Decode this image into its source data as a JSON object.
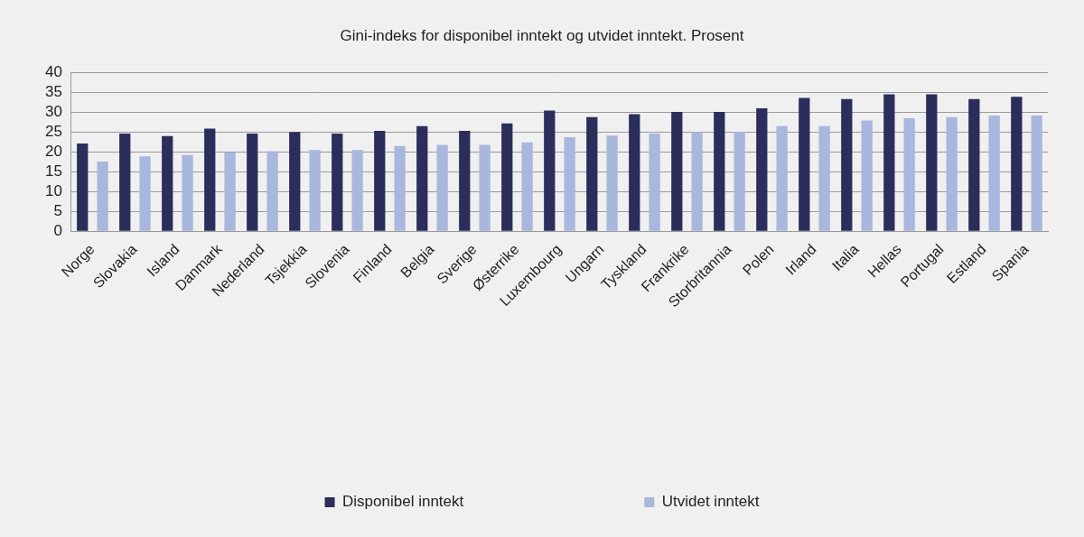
{
  "chart_data": {
    "type": "bar",
    "title": "Gini-indeks for disponibel inntekt og utvidet inntekt. Prosent",
    "categories": [
      "Norge",
      "Slovakia",
      "Island",
      "Danmark",
      "Nederland",
      "Tsjekkia",
      "Slovenia",
      "Finland",
      "Belgia",
      "Sverige",
      "Østerrike",
      "Luxembourg",
      "Ungarn",
      "Tyskland",
      "Frankrike",
      "Storbritannia",
      "Polen",
      "Irland",
      "Italia",
      "Hellas",
      "Portugal",
      "Estland",
      "Spania"
    ],
    "series": [
      {
        "name": "Disponibel inntekt",
        "color": "#2b2d5a",
        "values": [
          22.1,
          24.6,
          24.0,
          25.9,
          24.6,
          25.0,
          24.6,
          25.3,
          26.5,
          25.3,
          27.2,
          30.4,
          28.8,
          29.5,
          30.1,
          30.1,
          31.0,
          33.6,
          33.3,
          34.5,
          34.5,
          33.3,
          33.9
        ]
      },
      {
        "name": "Utvidet inntekt",
        "color": "#a9b6dd",
        "values": [
          17.6,
          18.9,
          19.2,
          19.9,
          20.2,
          20.5,
          20.5,
          21.5,
          21.8,
          21.8,
          22.4,
          23.7,
          24.1,
          24.6,
          25.0,
          25.1,
          26.5,
          26.5,
          27.9,
          28.5,
          28.8,
          29.2,
          29.2
        ]
      }
    ],
    "ylim": [
      0,
      40
    ],
    "yticks": [
      0,
      5,
      10,
      15,
      20,
      25,
      30,
      35,
      40
    ],
    "grid": true,
    "legend": "bottom"
  }
}
